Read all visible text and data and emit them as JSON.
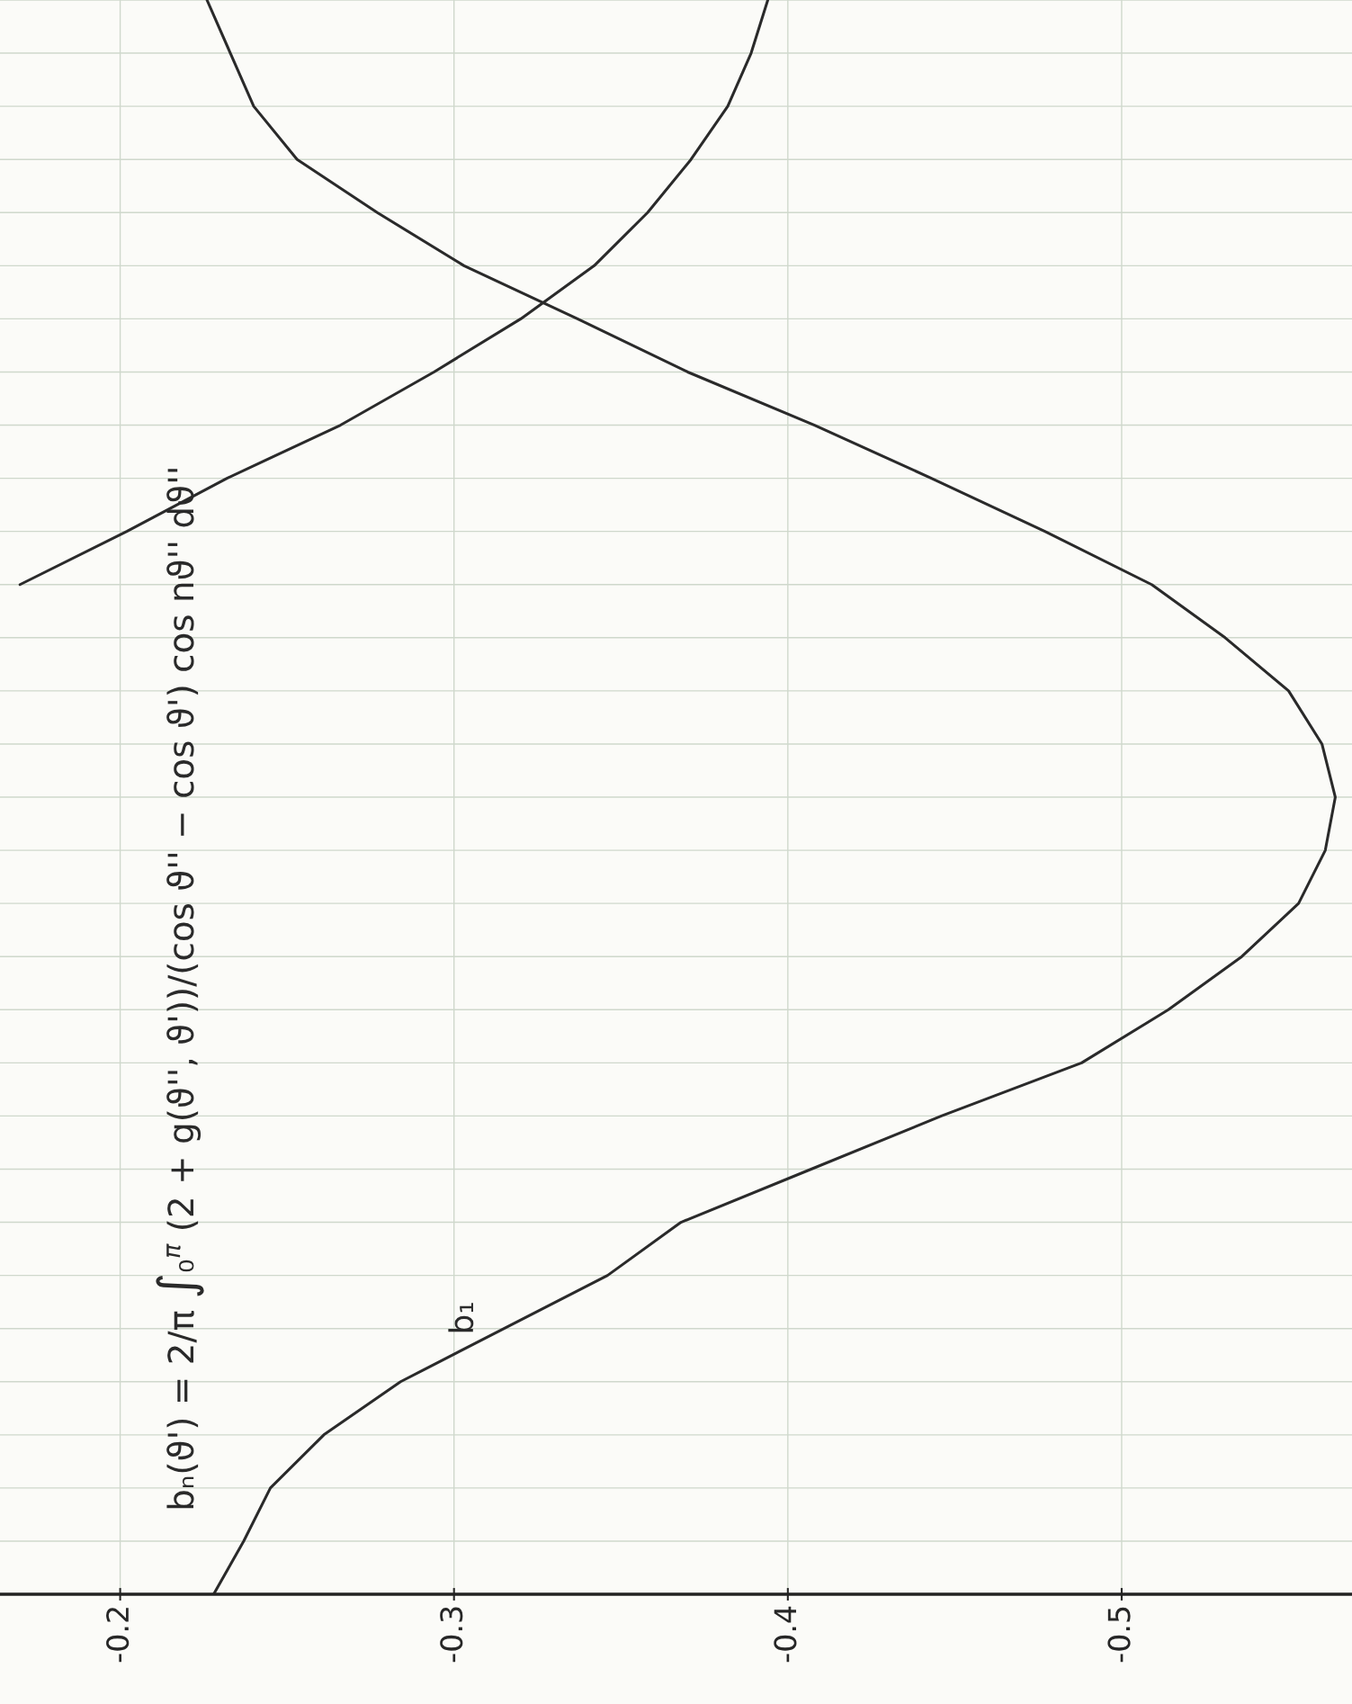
{
  "chart_data": {
    "type": "line",
    "orientation": "horizontal",
    "categories": [
      null,
      null,
      null,
      null,
      null,
      null,
      null,
      null,
      null,
      null,
      null,
      null,
      null,
      null,
      null,
      null,
      null,
      null,
      null,
      null,
      null,
      null,
      null,
      null,
      null,
      null,
      null,
      null,
      null,
      null,
      null
    ],
    "series": [
      {
        "name": "b₁",
        "color": "#2a2a2a",
        "values": [
          -0.226,
          -0.233,
          -0.24,
          -0.253,
          -0.277,
          -0.303,
          -0.337,
          -0.37,
          -0.408,
          -0.443,
          -0.477,
          -0.509,
          -0.531,
          -0.55,
          -0.56,
          -0.564,
          -0.561,
          -0.553,
          -0.536,
          -0.514,
          -0.488,
          -0.446,
          -0.407,
          -0.368,
          -0.346,
          -0.315,
          -0.284,
          -0.261,
          -0.245,
          -0.237,
          -0.228
        ]
      },
      {
        "color": "#2a2a2a",
        "values": [
          -0.394,
          -0.389,
          -0.382,
          -0.371,
          -0.358,
          -0.342,
          -0.32,
          -0.294,
          -0.266,
          -0.232,
          -0.202,
          -0.17,
          null,
          null,
          null,
          null,
          null,
          null,
          null,
          null,
          null,
          null,
          null,
          null,
          null,
          null,
          null,
          null,
          null,
          null,
          null
        ]
      }
    ],
    "xlim": [
      -0.164,
      -0.569
    ],
    "xticks": [
      -0.2,
      -0.3,
      -0.4,
      -0.5
    ],
    "tick_labels": "x",
    "grid": true,
    "line_style": "solid",
    "marker": "none",
    "annotations": [
      "bₙ(ϑ') = 2/π ∫₀$^{π}$ (2 + g(ϑ'', ϑ'))/(cos ϑ'' − cos ϑ') cos nϑ'' dϑ''"
    ]
  }
}
